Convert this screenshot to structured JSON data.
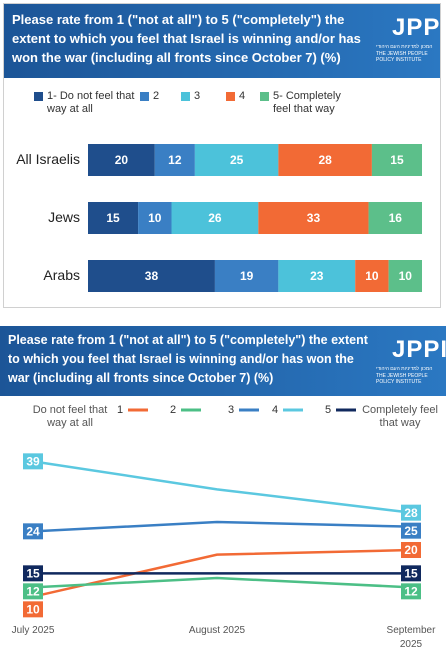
{
  "logo": {
    "name": "JPPI",
    "hebrew": "המכון למדיניות העם היהודי",
    "english": "THE JEWISH PEOPLE POLICY INSTITUTE"
  },
  "chart_data": [
    {
      "type": "stacked-bar-horizontal",
      "title": "Please rate from 1 (\"not at all\") to 5 (\"completely\") the extent to which you feel that Israel is winning and/or has won the war (including all fronts since October 7) (%)",
      "categories": [
        "All Israelis",
        "Jews",
        "Arabs"
      ],
      "xlim": [
        0,
        100
      ],
      "series": [
        {
          "name": "1- Do not feel that way at all",
          "color": "#1f4e8c",
          "values": [
            20,
            15,
            38
          ]
        },
        {
          "name": "2",
          "color": "#3a7fc4",
          "values": [
            12,
            10,
            19
          ]
        },
        {
          "name": "3",
          "color": "#4cc2da",
          "values": [
            25,
            26,
            23
          ]
        },
        {
          "name": "4",
          "color": "#f26a35",
          "values": [
            28,
            33,
            10
          ]
        },
        {
          "name": "5- Completely feel that way",
          "color": "#5cbf8a",
          "values": [
            15,
            16,
            10
          ]
        }
      ]
    },
    {
      "type": "line",
      "title": "Please rate from 1 (\"not at all\") to 5 (\"completely\") the extent to which you feel that Israel is winning and/or has won the war (including all fronts since October 7) (%)",
      "legend_left": "Do not feel that way at all",
      "legend_right": "Completely feel that way",
      "categories": [
        "July 2025",
        "August 2025",
        "September 2025"
      ],
      "ylim": [
        8,
        41
      ],
      "series": [
        {
          "name": "1",
          "color": "#f26a35",
          "values": [
            10,
            19,
            20
          ]
        },
        {
          "name": "2",
          "color": "#4cbf86",
          "values": [
            12,
            14,
            12
          ]
        },
        {
          "name": "3",
          "color": "#3a7fc4",
          "values": [
            24,
            26,
            25
          ]
        },
        {
          "name": "4",
          "color": "#5bc8e0",
          "values": [
            39,
            33,
            28
          ]
        },
        {
          "name": "5",
          "color": "#10295e",
          "values": [
            15,
            15,
            15
          ]
        }
      ]
    }
  ]
}
